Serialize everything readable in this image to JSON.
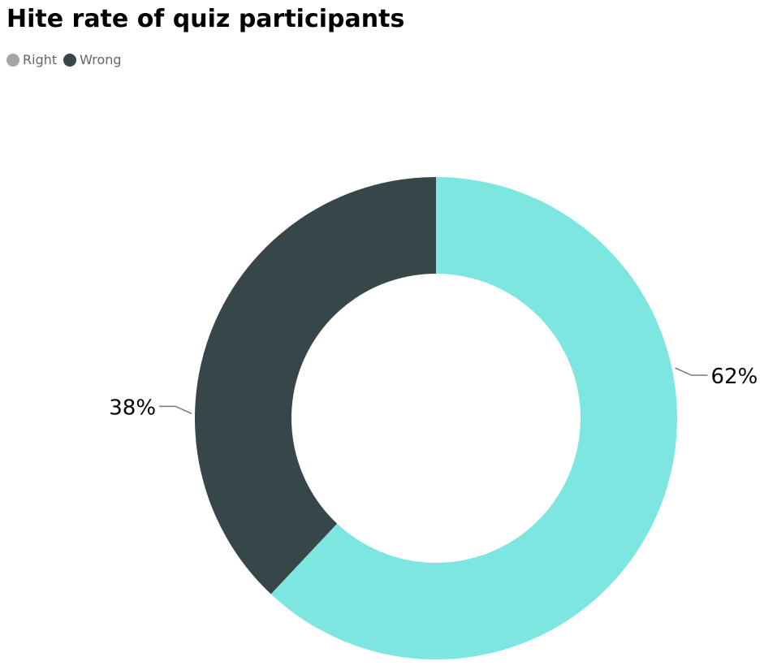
{
  "chart_data": {
    "type": "pie",
    "variant": "donut",
    "title": "Hite rate of quiz participants",
    "legend_position": "top-left",
    "series": [
      {
        "name": "Right",
        "value": 62,
        "label": "62%",
        "legend_color": "#a6a6a6",
        "slice_color": "#7de6e0"
      },
      {
        "name": "Wrong",
        "value": 38,
        "label": "38%",
        "legend_color": "#374649",
        "slice_color": "#374649"
      }
    ]
  }
}
